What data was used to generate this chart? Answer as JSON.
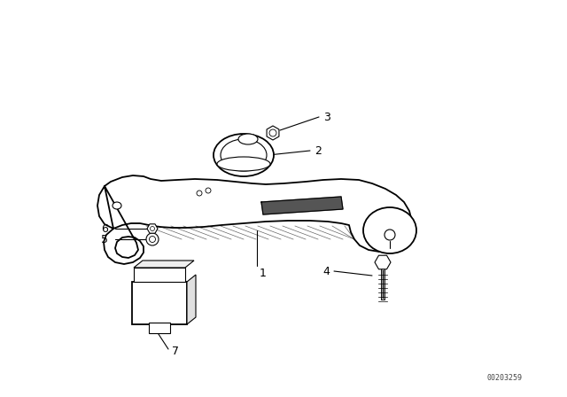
{
  "background_color": "#ffffff",
  "line_color": "#000000",
  "label_color": "#000000",
  "watermark": "00203259",
  "figsize": [
    6.4,
    4.48
  ],
  "dpi": 100
}
